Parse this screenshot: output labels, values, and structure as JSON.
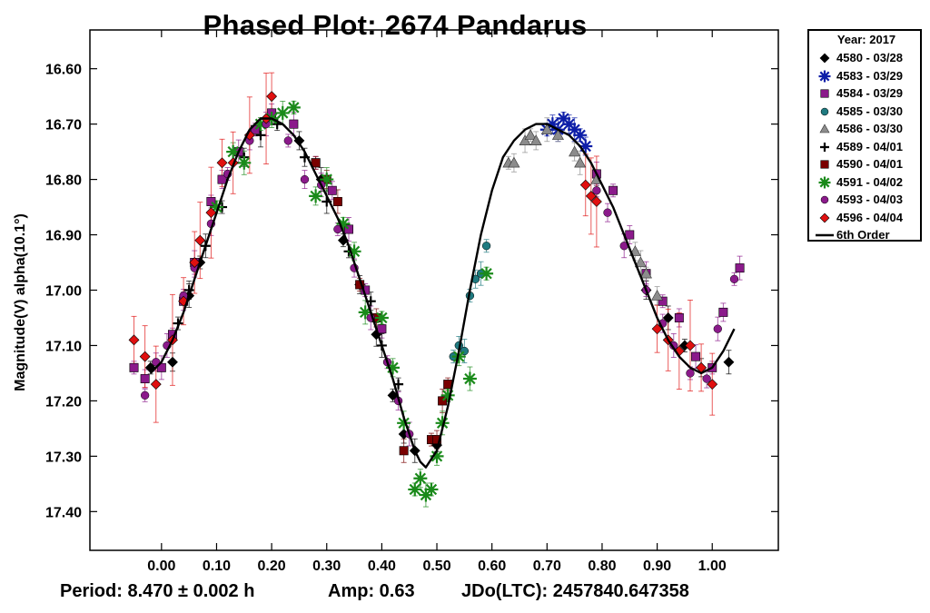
{
  "chart_data": {
    "type": "scatter",
    "title": "Phased Plot: 2674 Pandarus",
    "xlabel": "",
    "ylabel": "Magnitude(V) alpha(10.1°)",
    "xlim": [
      -0.13,
      1.12
    ],
    "ylim": [
      16.53,
      17.47
    ],
    "y_inverted": true,
    "x_ticks": [
      0.0,
      0.1,
      0.2,
      0.3,
      0.4,
      0.5,
      0.6,
      0.7,
      0.8,
      0.9,
      1.0
    ],
    "x_tick_labels": [
      "0.00",
      "0.10",
      "0.20",
      "0.30",
      "0.40",
      "0.50",
      "0.60",
      "0.70",
      "0.80",
      "0.90",
      "1.00"
    ],
    "y_ticks": [
      16.6,
      16.7,
      16.8,
      16.9,
      17.0,
      17.1,
      17.2,
      17.3,
      17.4
    ],
    "y_tick_labels": [
      "16.60",
      "16.70",
      "16.80",
      "16.90",
      "17.00",
      "17.10",
      "17.20",
      "17.30",
      "17.40"
    ],
    "grid": false,
    "legend_title": "Year: 2017",
    "legend_position": "outside-top-right",
    "series": [
      {
        "name": "4580 - 03/28",
        "marker": "diamond",
        "color": "#000000",
        "x": [
          -0.02,
          0.02,
          0.05,
          0.07,
          0.25,
          0.29,
          0.33,
          0.36,
          0.39,
          0.42,
          0.44,
          0.46,
          0.5,
          0.88,
          0.92,
          0.95,
          0.98,
          1.03
        ],
        "y": [
          17.14,
          17.13,
          17.01,
          16.95,
          16.73,
          16.8,
          16.91,
          16.99,
          17.08,
          17.19,
          17.26,
          17.29,
          17.28,
          17.0,
          17.05,
          17.1,
          17.14,
          17.13
        ]
      },
      {
        "name": "4583 - 03/29",
        "marker": "asterisk",
        "color": "#0d1ea8",
        "x": [
          0.7,
          0.71,
          0.72,
          0.73,
          0.74,
          0.75,
          0.76,
          0.77
        ],
        "y": [
          16.71,
          16.7,
          16.71,
          16.69,
          16.7,
          16.71,
          16.72,
          16.74
        ]
      },
      {
        "name": "4584 - 03/29",
        "marker": "square",
        "color": "#8b1a8b",
        "x": [
          -0.05,
          -0.03,
          0.0,
          0.02,
          0.04,
          0.06,
          0.09,
          0.11,
          0.14,
          0.17,
          0.2,
          0.24,
          0.28,
          0.31,
          0.34,
          0.37,
          0.4,
          0.79,
          0.82,
          0.85,
          0.88,
          0.91,
          0.94,
          0.97,
          1.0,
          1.02,
          1.05
        ],
        "y": [
          17.14,
          17.16,
          17.14,
          17.08,
          17.02,
          16.95,
          16.84,
          16.8,
          16.75,
          16.71,
          16.68,
          16.7,
          16.77,
          16.82,
          16.89,
          17.0,
          17.07,
          16.79,
          16.82,
          16.9,
          16.97,
          17.02,
          17.05,
          17.12,
          17.14,
          17.04,
          16.96
        ]
      },
      {
        "name": "4585 - 03/30",
        "marker": "circle",
        "color": "#1f7a80",
        "x": [
          0.53,
          0.54,
          0.55,
          0.56,
          0.57,
          0.58,
          0.59
        ],
        "y": [
          17.12,
          17.1,
          17.11,
          17.01,
          16.98,
          16.97,
          16.92
        ]
      },
      {
        "name": "4586 - 03/30",
        "marker": "triangle",
        "color": "#8c8c8c",
        "x": [
          0.63,
          0.64,
          0.66,
          0.67,
          0.68,
          0.7,
          0.72,
          0.75,
          0.76,
          0.79,
          0.86,
          0.87,
          0.88,
          0.9
        ],
        "y": [
          16.77,
          16.77,
          16.73,
          16.72,
          16.73,
          16.71,
          16.72,
          16.75,
          16.77,
          16.8,
          16.93,
          16.95,
          16.97,
          17.01
        ]
      },
      {
        "name": "4589 - 04/01",
        "marker": "plus",
        "color": "#000000",
        "x": [
          0.03,
          0.05,
          0.08,
          0.11,
          0.15,
          0.18,
          0.21,
          0.26,
          0.3,
          0.34,
          0.38,
          0.4,
          0.43
        ],
        "y": [
          17.06,
          17.0,
          16.92,
          16.85,
          16.76,
          16.72,
          16.7,
          16.76,
          16.84,
          16.93,
          17.02,
          17.1,
          17.17
        ]
      },
      {
        "name": "4590 - 04/01",
        "marker": "square",
        "color": "#7a0000",
        "x": [
          0.28,
          0.3,
          0.32,
          0.36,
          0.39,
          0.44,
          0.49,
          0.5,
          0.51,
          0.52
        ],
        "y": [
          16.77,
          16.8,
          16.84,
          16.99,
          17.05,
          17.29,
          17.27,
          17.27,
          17.2,
          17.17
        ]
      },
      {
        "name": "4591 - 04/02",
        "marker": "asterisk",
        "color": "#1a8a1a",
        "x": [
          0.1,
          0.13,
          0.15,
          0.18,
          0.2,
          0.22,
          0.24,
          0.28,
          0.3,
          0.33,
          0.35,
          0.37,
          0.4,
          0.42,
          0.44,
          0.46,
          0.47,
          0.48,
          0.49,
          0.5,
          0.51,
          0.52,
          0.54,
          0.56,
          0.59
        ],
        "y": [
          16.85,
          16.75,
          16.77,
          16.7,
          16.69,
          16.68,
          16.67,
          16.83,
          16.8,
          16.88,
          16.93,
          17.04,
          17.05,
          17.14,
          17.24,
          17.36,
          17.34,
          17.37,
          17.36,
          17.3,
          17.24,
          17.19,
          17.12,
          17.16,
          16.97
        ]
      },
      {
        "name": "4593 - 04/03",
        "marker": "circle",
        "color": "#8b1a8b",
        "x": [
          -0.03,
          -0.01,
          0.01,
          0.04,
          0.06,
          0.09,
          0.12,
          0.16,
          0.19,
          0.23,
          0.26,
          0.29,
          0.32,
          0.35,
          0.38,
          0.41,
          0.43,
          0.45,
          0.79,
          0.81,
          0.84,
          0.88,
          0.91,
          0.93,
          0.96,
          0.99,
          1.01,
          1.04
        ],
        "y": [
          17.19,
          17.13,
          17.1,
          17.01,
          16.96,
          16.88,
          16.79,
          16.73,
          16.7,
          16.73,
          16.8,
          16.81,
          16.89,
          16.96,
          17.05,
          17.13,
          17.2,
          17.26,
          16.82,
          16.86,
          16.92,
          17.0,
          17.06,
          17.1,
          17.15,
          17.16,
          17.07,
          16.98
        ]
      },
      {
        "name": "4596 - 04/04",
        "marker": "diamond",
        "color": "#e01010",
        "x": [
          -0.05,
          -0.03,
          -0.01,
          0.02,
          0.04,
          0.06,
          0.07,
          0.09,
          0.11,
          0.13,
          0.16,
          0.19,
          0.2,
          0.77,
          0.78,
          0.79,
          0.9,
          0.92,
          0.94,
          0.96,
          0.98,
          1.0
        ],
        "y": [
          17.09,
          17.12,
          17.17,
          17.09,
          17.02,
          16.95,
          16.91,
          16.86,
          16.77,
          16.77,
          16.72,
          16.69,
          16.65,
          16.81,
          16.83,
          16.84,
          17.07,
          17.09,
          17.11,
          17.1,
          17.14,
          17.17
        ]
      }
    ],
    "fit": {
      "name": "6th Order",
      "color": "#000000",
      "x": [
        -0.02,
        0.0,
        0.02,
        0.04,
        0.06,
        0.08,
        0.1,
        0.12,
        0.14,
        0.16,
        0.18,
        0.2,
        0.22,
        0.24,
        0.26,
        0.28,
        0.3,
        0.32,
        0.34,
        0.36,
        0.38,
        0.4,
        0.42,
        0.44,
        0.46,
        0.47,
        0.48,
        0.5,
        0.52,
        0.54,
        0.56,
        0.58,
        0.6,
        0.62,
        0.64,
        0.66,
        0.68,
        0.7,
        0.72,
        0.74,
        0.76,
        0.78,
        0.8,
        0.82,
        0.84,
        0.86,
        0.88,
        0.9,
        0.92,
        0.94,
        0.96,
        0.98,
        1.0,
        1.02,
        1.04
      ],
      "y": [
        17.15,
        17.13,
        17.09,
        17.04,
        16.98,
        16.92,
        16.86,
        16.8,
        16.75,
        16.71,
        16.69,
        16.69,
        16.7,
        16.72,
        16.75,
        16.79,
        16.83,
        16.87,
        16.92,
        16.98,
        17.04,
        17.1,
        17.16,
        17.23,
        17.29,
        17.31,
        17.32,
        17.29,
        17.21,
        17.11,
        17.0,
        16.9,
        16.82,
        16.76,
        16.73,
        16.71,
        16.7,
        16.7,
        16.71,
        16.72,
        16.74,
        16.77,
        16.81,
        16.85,
        16.9,
        16.95,
        17.0,
        17.05,
        17.09,
        17.12,
        17.14,
        17.15,
        17.14,
        17.11,
        17.07
      ]
    }
  },
  "footer": {
    "period": "Period: 8.470 ± 0.002 h",
    "amp": "Amp: 0.63",
    "jdo": "JDo(LTC): 2457840.647358"
  }
}
